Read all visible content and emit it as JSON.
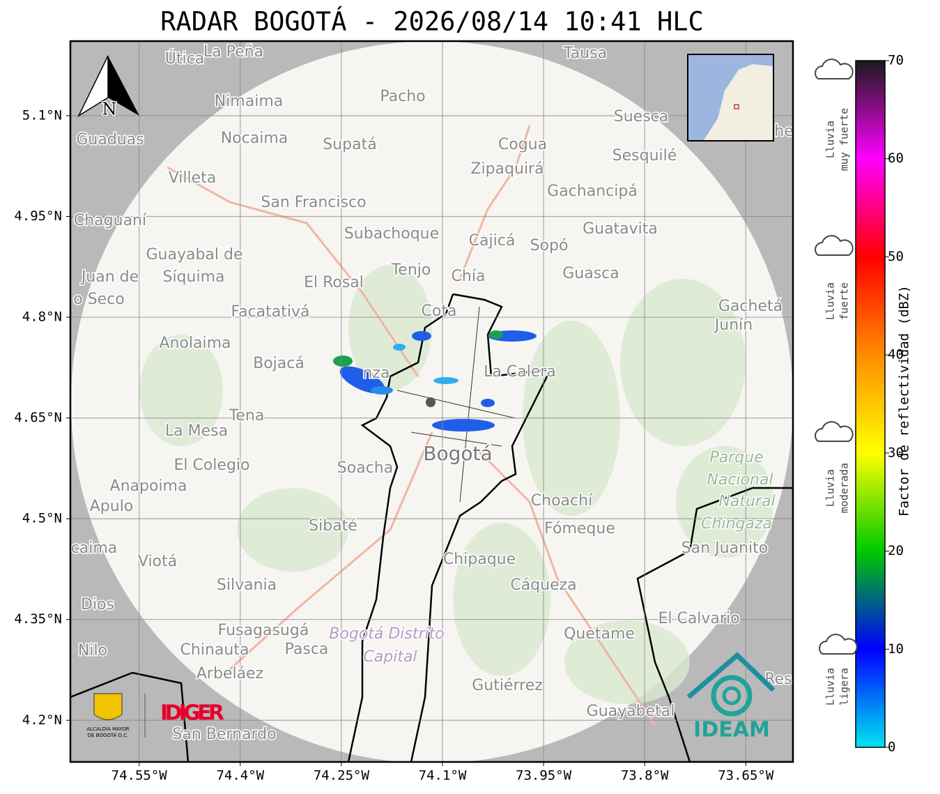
{
  "title": "RADAR BOGOTÁ - 2026/08/14 10:41 HLC",
  "map": {
    "xlim": [
      -74.652,
      -73.58
    ],
    "ylim": [
      4.138,
      5.211
    ],
    "grid": true,
    "xticks": [
      {
        "value": -74.55,
        "label": "74.55°W"
      },
      {
        "value": -74.4,
        "label": "74.4°W"
      },
      {
        "value": -74.25,
        "label": "74.25°W"
      },
      {
        "value": -74.1,
        "label": "74.1°W"
      },
      {
        "value": -73.95,
        "label": "73.95°W"
      },
      {
        "value": -73.8,
        "label": "73.8°W"
      },
      {
        "value": -73.65,
        "label": "73.65°W"
      }
    ],
    "yticks": [
      {
        "value": 4.2,
        "label": "4.2°N"
      },
      {
        "value": 4.35,
        "label": "4.35°N"
      },
      {
        "value": 4.5,
        "label": "4.5°N"
      },
      {
        "value": 4.65,
        "label": "4.65°N"
      },
      {
        "value": 4.8,
        "label": "4.8°N"
      },
      {
        "value": 4.95,
        "label": "4.95°N"
      },
      {
        "value": 5.1,
        "label": "5.1°N"
      }
    ],
    "north_label": "N",
    "places": [
      "Útica",
      "La Peña",
      "Tausa",
      "Pacho",
      "Nimaima",
      "Guaduas",
      "Nocaima",
      "Supatá",
      "Cogua",
      "Suesca",
      "Sesquilé",
      "Zipaquirá",
      "Villeta",
      "Gachancipá",
      "San Francisco",
      "Chaguaní",
      "Guatavita",
      "Subachoque",
      "Cajicá",
      "Sopó",
      "Guayabal de",
      "Síquima",
      "Tenjo",
      "Chía",
      "Juan de",
      "El Rosal",
      "Guasca",
      "o Seco",
      "Facatativá",
      "Cota",
      "Gachetá",
      "Junín",
      "Anolaima",
      "Bojacá",
      "La Calera",
      "nza",
      "Tena",
      "La Mesa",
      "El Colegio",
      "Bogotá",
      "Soacha",
      "Parque",
      "Nacional",
      "Natural",
      "Chingaza",
      "Anapoima",
      "Apulo",
      "Choachí",
      "Sibaté",
      "Fómeque",
      "San Juanito",
      "caima",
      "Viotá",
      "Chipaque",
      "Silvania",
      "Cáqueza",
      "Dios",
      "El Calvario",
      "Fusagasugá",
      "Bogotá Distrito",
      "Capital",
      "Quetame",
      "Nilo",
      "Chinauta",
      "Pasca",
      "Arbeláez",
      "Gutiérrez",
      "Res",
      "Guayabetal",
      "San Bernardo",
      "he"
    ]
  },
  "colorbar": {
    "label": "Factor de reflectividad (dBZ)",
    "lim": [
      0,
      70
    ],
    "ticks": [
      0,
      10,
      20,
      30,
      40,
      50,
      60,
      70
    ],
    "colors": [
      "#00e5f0",
      "#0000ff",
      "#00c800",
      "#ffff00",
      "#ff8c00",
      "#ff0000",
      "#ff00ff",
      "#1a1a1a"
    ],
    "categories": [
      [
        "Lluvia",
        "muy fuerte"
      ],
      [
        "Lluvia",
        "fuerte"
      ],
      [
        "Lluvia",
        "moderada"
      ],
      [
        "Lluvia",
        "ligera"
      ]
    ]
  },
  "logos": {
    "alcaldia": [
      "ALCALDÍA MAYOR",
      "DE BOGOTÁ D.C."
    ],
    "idiger": "IDIGER",
    "ideam": "IDEAM"
  }
}
